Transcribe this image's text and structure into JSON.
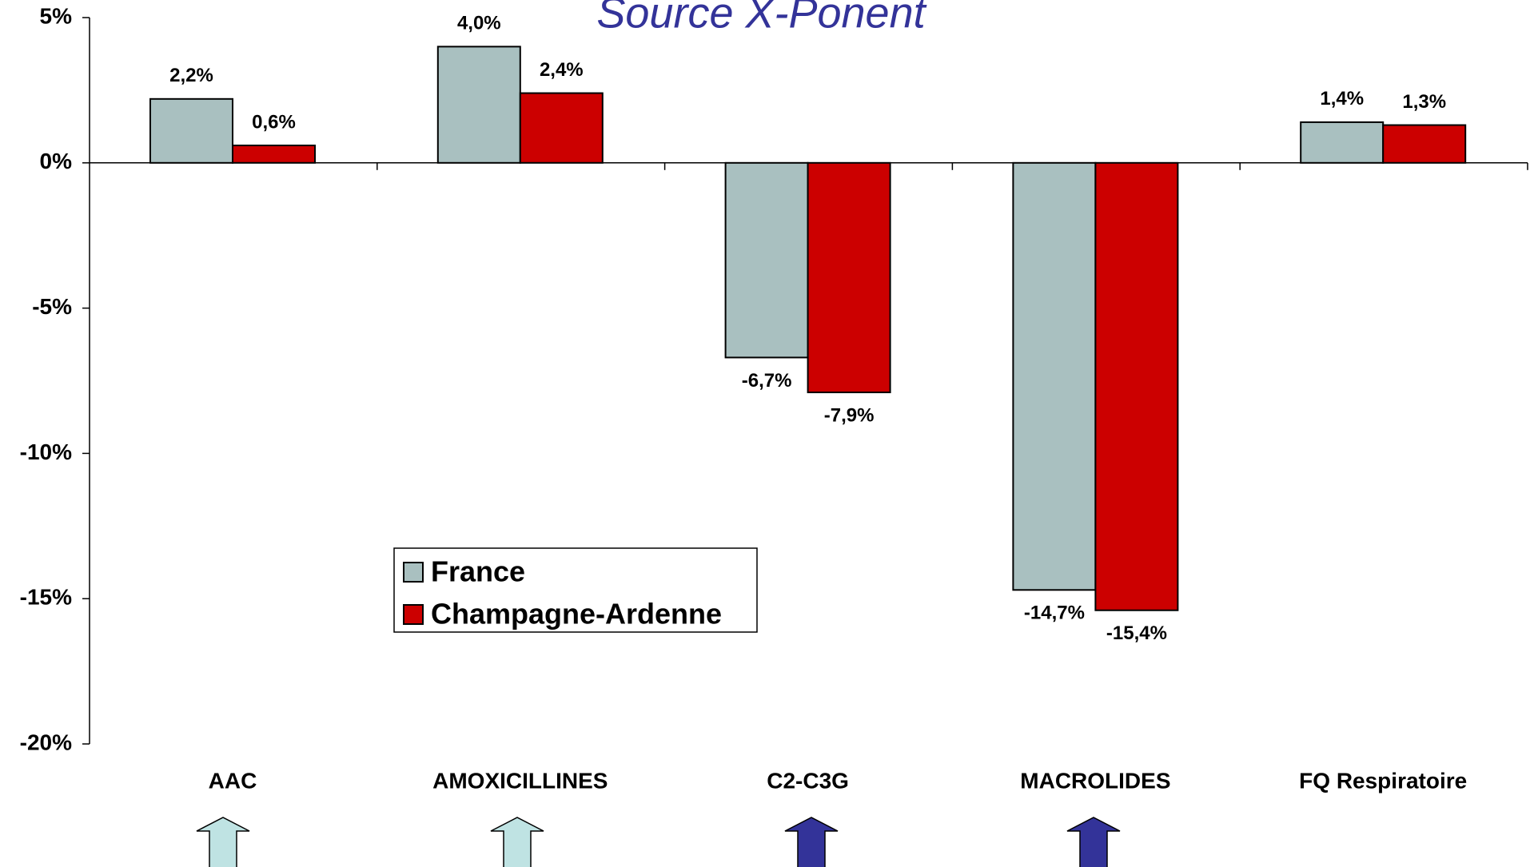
{
  "chart_data": {
    "type": "bar",
    "title": "Source X-Ponent",
    "categories": [
      "AAC",
      "AMOXICILLINES",
      "C2-C3G",
      "MACROLIDES",
      "FQ Respiratoire"
    ],
    "series": [
      {
        "name": "France",
        "color": "#a9c0c0",
        "values": [
          2.2,
          4.0,
          -6.7,
          -14.7,
          1.4
        ],
        "value_labels": [
          "2,2%",
          "4,0%",
          "-6,7%",
          "-14,7%",
          "1,4%"
        ]
      },
      {
        "name": "Champagne-Ardenne",
        "color": "#cc0000",
        "values": [
          0.6,
          2.4,
          -7.9,
          -15.4,
          1.3
        ],
        "value_labels": [
          "0,6%",
          "2,4%",
          "-7,9%",
          "-15,4%",
          "1,3%"
        ]
      }
    ],
    "ylim": [
      -20,
      5
    ],
    "yticks": [
      {
        "value": -20,
        "label": "-20%"
      },
      {
        "value": -15,
        "label": "-15%"
      },
      {
        "value": -10,
        "label": "-10%"
      },
      {
        "value": -5,
        "label": "-5%"
      },
      {
        "value": 0,
        "label": "0%"
      },
      {
        "value": 5,
        "label": "5%"
      }
    ],
    "legend": "center"
  }
}
